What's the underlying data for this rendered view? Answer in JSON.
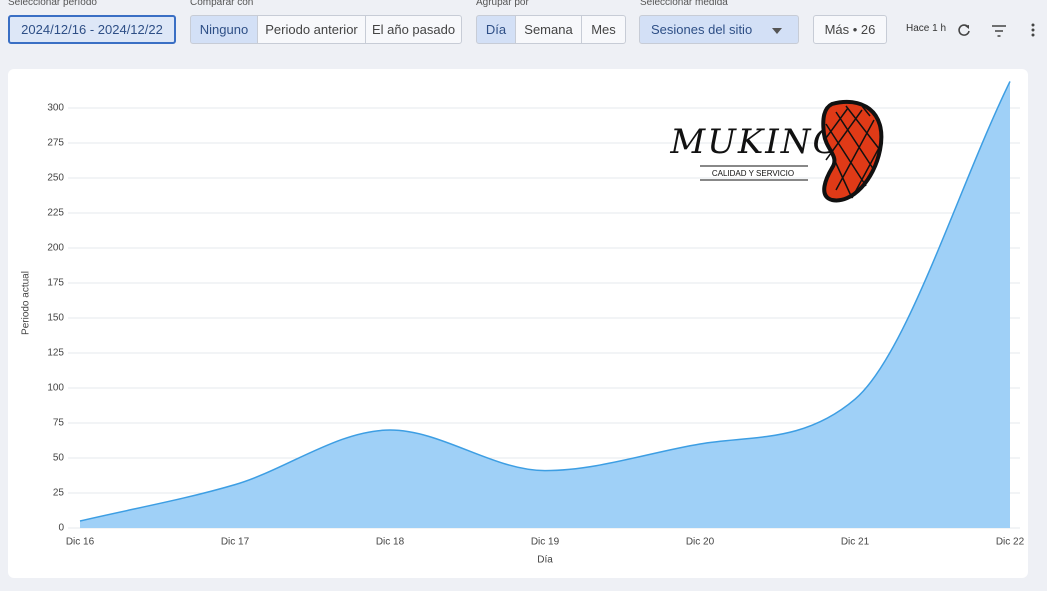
{
  "toolbar": {
    "period": {
      "label": "Seleccionar período",
      "value": "2024/12/16 - 2024/12/22"
    },
    "compare": {
      "label": "Comparar con",
      "options": [
        "Ninguno",
        "Periodo anterior",
        "El año pasado"
      ]
    },
    "group": {
      "label": "Agrupar por",
      "options": [
        "Día",
        "Semana",
        "Mes"
      ]
    },
    "measure": {
      "label": "Seleccionar medida",
      "value": "Sesiones del sitio"
    },
    "more": "Más • 26",
    "updated": "Hace 1 h"
  },
  "logo": {
    "title": "MUKING",
    "subtitle": "CALIDAD Y SERVICIO"
  },
  "chart_data": {
    "type": "area",
    "x_label": "Día",
    "y_label": "Periodo actual",
    "categories": [
      "Dic 16",
      "Dic 17",
      "Dic 18",
      "Dic 19",
      "Dic 20",
      "Dic 21",
      "Dic 22"
    ],
    "values": [
      5,
      31,
      70,
      41,
      60,
      92,
      319
    ],
    "color": "#9fd0f7",
    "line_color": "#3d9ee3",
    "ylim": [
      0,
      320
    ],
    "yticks": [
      0,
      25,
      50,
      75,
      100,
      125,
      150,
      175,
      200,
      225,
      250,
      275,
      300
    ],
    "grid": true
  }
}
